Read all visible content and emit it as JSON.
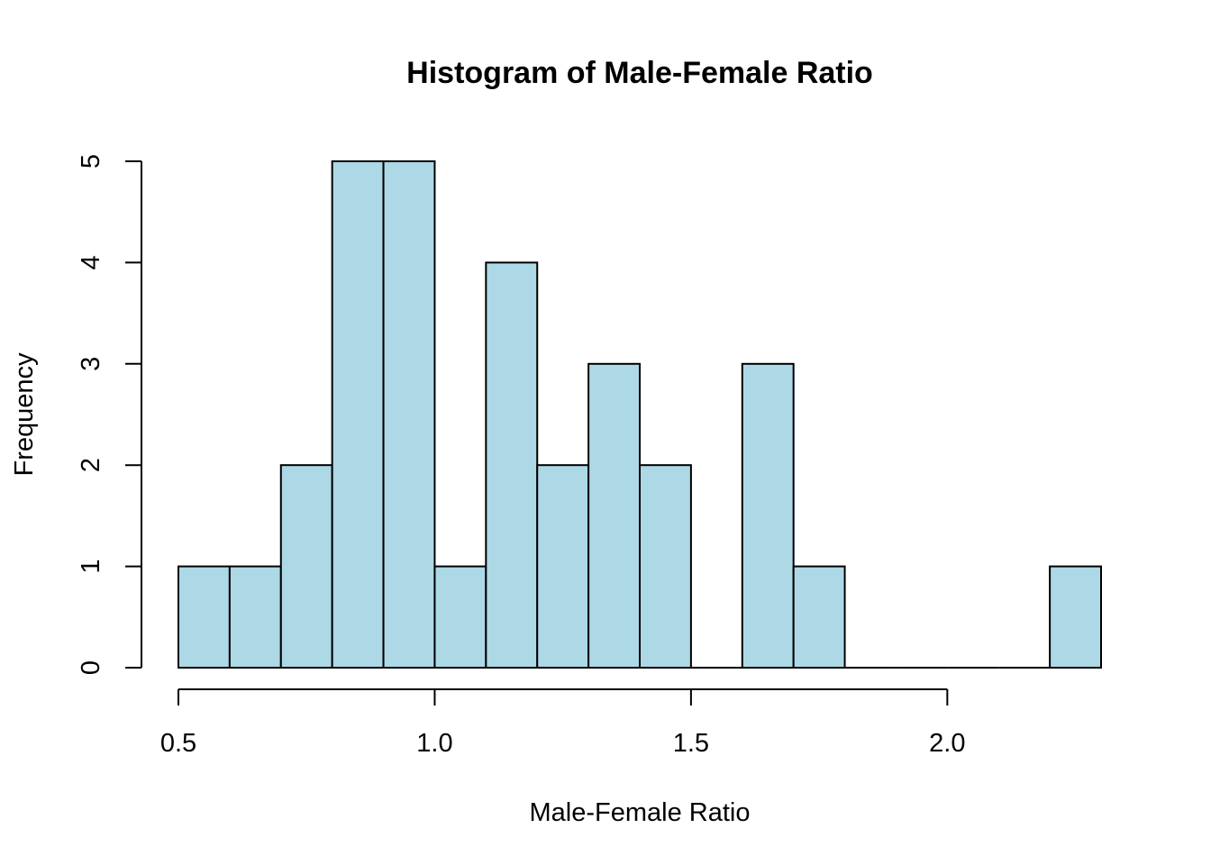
{
  "chart_data": {
    "type": "bar",
    "title": "Histogram of Male-Female Ratio",
    "xlabel": "Male-Female Ratio",
    "ylabel": "Frequency",
    "bin_edges": [
      0.5,
      0.6,
      0.7,
      0.8,
      0.9,
      1.0,
      1.1,
      1.2,
      1.3,
      1.4,
      1.5,
      1.6,
      1.7,
      1.8,
      1.9,
      2.0,
      2.1,
      2.2,
      2.3
    ],
    "counts": [
      1,
      1,
      2,
      5,
      5,
      1,
      4,
      2,
      3,
      2,
      0,
      3,
      1,
      0,
      0,
      0,
      0,
      1
    ],
    "xticks": [
      0.5,
      1.0,
      1.5,
      2.0
    ],
    "xtick_labels": [
      "0.5",
      "1.0",
      "1.5",
      "2.0"
    ],
    "yticks": [
      0,
      1,
      2,
      3,
      4,
      5
    ],
    "ytick_labels": [
      "0",
      "1",
      "2",
      "3",
      "4",
      "5"
    ],
    "xlim": [
      0.5,
      2.3
    ],
    "ylim": [
      0,
      5
    ],
    "bar_color": "#ADD8E6",
    "grid": false,
    "legend": "none"
  }
}
